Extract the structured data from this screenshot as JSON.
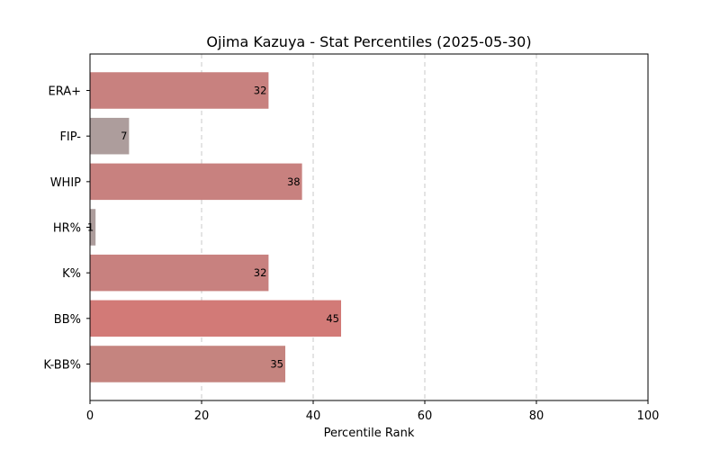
{
  "chart_data": {
    "type": "bar",
    "orientation": "horizontal",
    "title": "Ojima Kazuya - Stat Percentiles (2025-05-30)",
    "xlabel": "Percentile Rank",
    "ylabel": "",
    "xlim": [
      0,
      100
    ],
    "xticks": [
      0,
      20,
      40,
      60,
      80,
      100
    ],
    "grid": "x-axis dashed",
    "categories": [
      "ERA+",
      "FIP-",
      "WHIP",
      "HR%",
      "K%",
      "BB%",
      "K-BB%"
    ],
    "values": [
      32,
      7,
      38,
      1,
      32,
      45,
      35
    ],
    "labels": [
      "32",
      "7",
      "38",
      "1",
      "32",
      "45",
      "35"
    ],
    "colors": [
      "#c8817f",
      "#ad9d9c",
      "#c8817f",
      "#ad9d9c",
      "#c8817f",
      "#d27a77",
      "#c5847f"
    ]
  }
}
